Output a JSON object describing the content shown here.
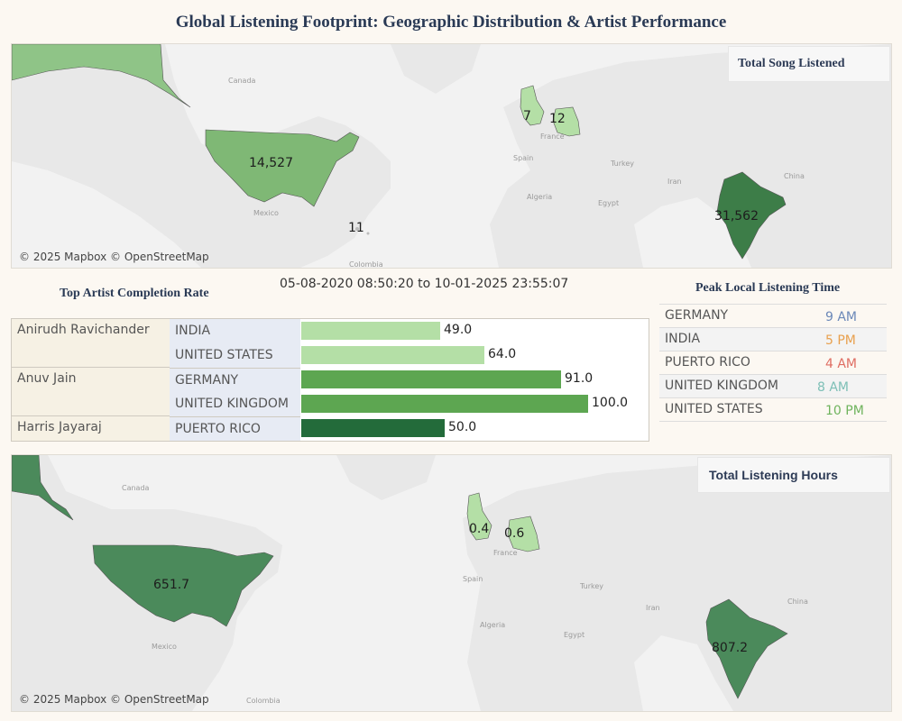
{
  "title": "Global Listening Footprint: Geographic Distribution & Artist Performance",
  "attribution": "© 2025 Mapbox © OpenStreetMap",
  "map_top": {
    "box_title": "Total Song Listened",
    "labels": {
      "us": "14,527",
      "india": "31,562",
      "uk": "7",
      "germany": "12",
      "pr": "11"
    },
    "places": {
      "canada": "Canada",
      "mexico": "Mexico",
      "colombia": "Colombia",
      "france": "France",
      "spain": "Spain",
      "algeria": "Algeria",
      "egypt": "Egypt",
      "turkey": "Turkey",
      "iran": "Iran",
      "china": "China"
    }
  },
  "map_bottom": {
    "box_title": "Total Listening Hours",
    "labels": {
      "us": "651.7",
      "india": "807.2",
      "uk": "0.4",
      "germany": "0.6"
    },
    "places": {
      "canada": "Canada",
      "mexico": "Mexico",
      "colombia": "Colombia",
      "france": "France",
      "spain": "Spain",
      "algeria": "Algeria",
      "egypt": "Egypt",
      "turkey": "Turkey",
      "iran": "Iran",
      "china": "China"
    }
  },
  "colors": {
    "light_green": "#b4dfa6",
    "mid_green": "#5da651",
    "dark_green": "#236b3a",
    "map_us_top": "#7fb875",
    "map_india_top": "#3d7d48"
  },
  "completion": {
    "title": "Top Artist Completion Rate",
    "date_range": "05-08-2020 08:50:20 to 10-01-2025 23:55:07",
    "artists": [
      {
        "name": "Anirudh Ravichander",
        "rows": [
          {
            "country": "INDIA",
            "value": "49.0"
          },
          {
            "country": "UNITED STATES",
            "value": "64.0"
          }
        ]
      },
      {
        "name": "Anuv Jain",
        "rows": [
          {
            "country": "GERMANY",
            "value": "91.0"
          },
          {
            "country": "UNITED KINGDOM",
            "value": "100.0"
          }
        ]
      },
      {
        "name": "Harris Jayaraj",
        "rows": [
          {
            "country": "PUERTO RICO",
            "value": "50.0"
          }
        ]
      }
    ]
  },
  "peak": {
    "title": "Peak Local Listening Time",
    "rows": [
      {
        "country": "GERMANY",
        "time": "9 AM",
        "color": "#6b88b8"
      },
      {
        "country": "INDIA",
        "time": "5 PM",
        "color": "#e8a04e"
      },
      {
        "country": "PUERTO RICO",
        "time": "4 AM",
        "color": "#df6d62"
      },
      {
        "country": "UNITED KINGDOM",
        "time": "8 AM",
        "color": "#7dbfb6"
      },
      {
        "country": "UNITED STATES",
        "time": "10 PM",
        "color": "#6fb35d"
      }
    ]
  }
}
